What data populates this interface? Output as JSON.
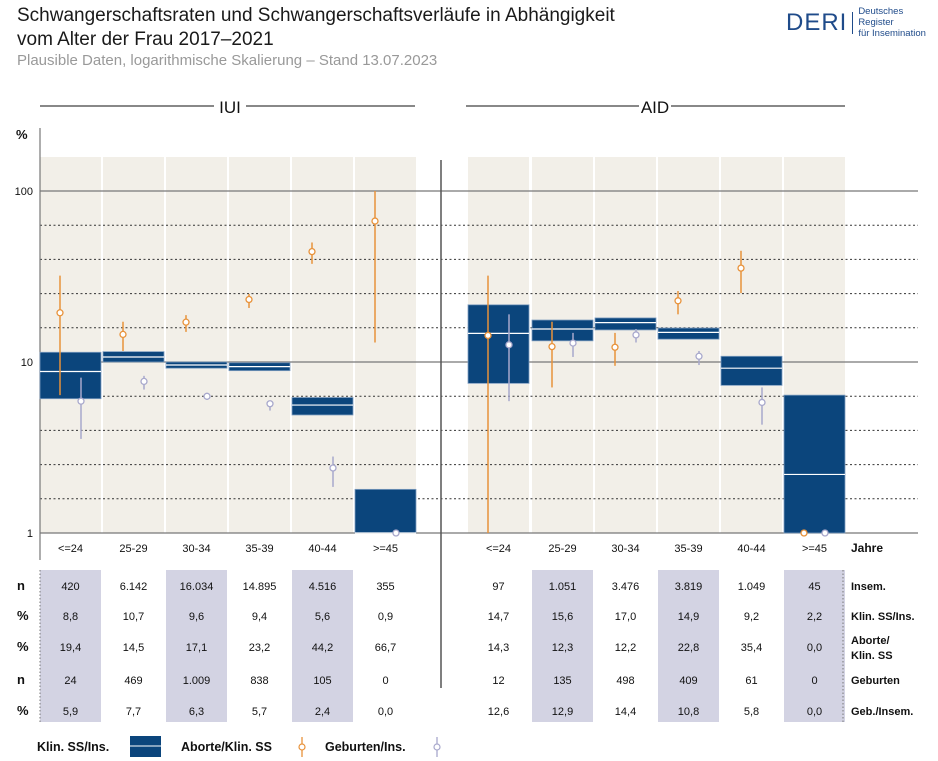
{
  "header": {
    "title_line1": "Schwangerschaftsraten und Schwangerschaftsverläufe in Abhängigkeit",
    "title_line2": "vom Alter der Frau 2017–2021",
    "subtitle": "Plausible Daten, logarithmische Skalierung – Stand 13.07.2023",
    "logo": {
      "word": "DERI",
      "line1": "Deutsches Register",
      "line2": "für Insemination"
    }
  },
  "colors": {
    "box": "#0b457c",
    "aborte": "#e8923a",
    "geburten": "#a8a8cc",
    "panel_bg": "#f2efe8",
    "table_shade": "#d3d3e3"
  },
  "chart_data": {
    "type": "box-errorbar",
    "scale": "log",
    "ylabel": "%",
    "ylim": [
      1,
      100
    ],
    "yticks": [
      1,
      10,
      100
    ],
    "xlabel": "Jahre",
    "categories": [
      "<=24",
      "25-29",
      "30-34",
      "35-39",
      "40-44",
      ">=45"
    ],
    "panels": [
      {
        "name": "IUI",
        "klin_ss": [
          {
            "v": 8.8,
            "lo": 6.1,
            "hi": 11.4
          },
          {
            "v": 10.7,
            "lo": 10.0,
            "hi": 11.5
          },
          {
            "v": 9.6,
            "lo": 9.2,
            "hi": 10.0
          },
          {
            "v": 9.4,
            "lo": 8.9,
            "hi": 9.9
          },
          {
            "v": 5.6,
            "lo": 4.9,
            "hi": 6.2
          },
          {
            "v": 0.9,
            "lo": 0.3,
            "hi": 1.8
          }
        ],
        "aborte": [
          {
            "v": 19.4,
            "lo": 6.4,
            "hi": 32
          },
          {
            "v": 14.5,
            "lo": 11.6,
            "hi": 17.2
          },
          {
            "v": 17.1,
            "lo": 15,
            "hi": 18.8
          },
          {
            "v": 23.2,
            "lo": 20.7,
            "hi": 25
          },
          {
            "v": 44.2,
            "lo": 37.5,
            "hi": 50
          },
          {
            "v": 66.7,
            "lo": 13,
            "hi": 100
          }
        ],
        "geburten": [
          {
            "v": 5.9,
            "lo": 3.55,
            "hi": 8.1
          },
          {
            "v": 7.7,
            "lo": 6.9,
            "hi": 8.3
          },
          {
            "v": 6.3,
            "lo": 6.0,
            "hi": 6.6
          },
          {
            "v": 5.7,
            "lo": 5.2,
            "hi": 5.9
          },
          {
            "v": 2.4,
            "lo": 1.86,
            "hi": 2.8
          },
          {
            "v": 0.0,
            "lo": 0,
            "hi": 0
          }
        ]
      },
      {
        "name": "AID",
        "klin_ss": [
          {
            "v": 14.7,
            "lo": 7.5,
            "hi": 21.6
          },
          {
            "v": 15.6,
            "lo": 13.3,
            "hi": 17.6
          },
          {
            "v": 17.0,
            "lo": 15.4,
            "hi": 18.1
          },
          {
            "v": 14.9,
            "lo": 13.6,
            "hi": 15.8
          },
          {
            "v": 9.2,
            "lo": 7.3,
            "hi": 10.8
          },
          {
            "v": 2.2,
            "lo": 0.3,
            "hi": 6.4
          }
        ],
        "aborte": [
          {
            "v": 14.3,
            "lo": 0,
            "hi": 32
          },
          {
            "v": 12.3,
            "lo": 7.1,
            "hi": 17.2
          },
          {
            "v": 12.2,
            "lo": 9.5,
            "hi": 14.8
          },
          {
            "v": 22.8,
            "lo": 19,
            "hi": 26
          },
          {
            "v": 35.4,
            "lo": 25.3,
            "hi": 44.7
          },
          {
            "v": 0.0,
            "lo": 0,
            "hi": 0
          }
        ],
        "geburten": [
          {
            "v": 12.6,
            "lo": 5.9,
            "hi": 19
          },
          {
            "v": 12.9,
            "lo": 10.7,
            "hi": 14.8
          },
          {
            "v": 14.4,
            "lo": 13,
            "hi": 15.6
          },
          {
            "v": 10.8,
            "lo": 9.6,
            "hi": 11.6
          },
          {
            "v": 5.8,
            "lo": 4.3,
            "hi": 7.1
          },
          {
            "v": 0.0,
            "lo": 0,
            "hi": 0
          }
        ]
      }
    ],
    "legend": [
      "Klin. SS/Ins.",
      "Aborte/Klin. SS",
      "Geburten/Ins."
    ],
    "legend_placement": "bottom"
  },
  "table": {
    "units": [
      "n",
      "%",
      "%",
      "n",
      "%"
    ],
    "row_labels": [
      "Insem.",
      "Klin. SS/Ins.",
      "Aborte/",
      "Klin. SS",
      "Geburten",
      "Geb./Insem."
    ],
    "iui": [
      [
        "420",
        "6.142",
        "16.034",
        "14.895",
        "4.516",
        "355"
      ],
      [
        "8,8",
        "10,7",
        "9,6",
        "9,4",
        "5,6",
        "0,9"
      ],
      [
        "19,4",
        "14,5",
        "17,1",
        "23,2",
        "44,2",
        "66,7"
      ],
      [
        "24",
        "469",
        "1.009",
        "838",
        "105",
        "0"
      ],
      [
        "5,9",
        "7,7",
        "6,3",
        "5,7",
        "2,4",
        "0,0"
      ]
    ],
    "aid": [
      [
        "97",
        "1.051",
        "3.476",
        "3.819",
        "1.049",
        "45"
      ],
      [
        "14,7",
        "15,6",
        "17,0",
        "14,9",
        "9,2",
        "2,2"
      ],
      [
        "14,3",
        "12,3",
        "12,2",
        "22,8",
        "35,4",
        "0,0"
      ],
      [
        "12",
        "135",
        "498",
        "409",
        "61",
        "0"
      ],
      [
        "12,6",
        "12,9",
        "14,4",
        "10,8",
        "5,8",
        "0,0"
      ]
    ]
  }
}
